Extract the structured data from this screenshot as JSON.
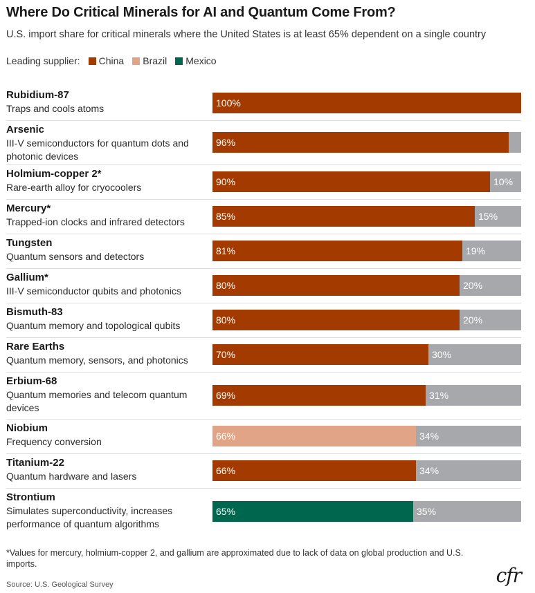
{
  "header": {
    "title": "Where Do Critical Minerals for AI and Quantum Come From?",
    "subtitle": "U.S. import share for critical minerals where the United States is at least 65% dependent on a single country"
  },
  "legend": {
    "title": "Leading supplier:",
    "items": [
      {
        "label": "China",
        "color": "#a33b00"
      },
      {
        "label": "Brazil",
        "color": "#e2a486"
      },
      {
        "label": "Mexico",
        "color": "#00674f"
      }
    ]
  },
  "colors": {
    "China": "#a33b00",
    "Brazil": "#e2a486",
    "Mexico": "#00674f",
    "other": "#a6a8ab"
  },
  "chart_data": {
    "type": "bar",
    "orientation": "horizontal",
    "stacked": true,
    "title": "Where Do Critical Minerals for AI and Quantum Come From?",
    "xlim": [
      0,
      100
    ],
    "categories": [
      "Rubidium-87",
      "Arsenic",
      "Holmium-copper 2*",
      "Mercury*",
      "Tungsten",
      "Gallium*",
      "Bismuth-83",
      "Rare Earths",
      "Erbium-68",
      "Niobium",
      "Titanium-22",
      "Strontium"
    ],
    "rows": [
      {
        "name": "Rubidium-87",
        "desc": "Traps and cools atoms",
        "supplier": "China",
        "value": 100,
        "value_label": "100%",
        "rest": 0,
        "rest_label": ""
      },
      {
        "name": "Arsenic",
        "desc": "III-V semiconductors for quantum dots and photonic devices",
        "supplier": "China",
        "value": 96,
        "value_label": "96%",
        "rest": 4,
        "rest_label": ""
      },
      {
        "name": "Holmium-copper 2*",
        "desc": "Rare-earth alloy for cryocoolers",
        "supplier": "China",
        "value": 90,
        "value_label": "90%",
        "rest": 10,
        "rest_label": "10%"
      },
      {
        "name": "Mercury*",
        "desc": "Trapped-ion clocks and infrared detectors",
        "supplier": "China",
        "value": 85,
        "value_label": "85%",
        "rest": 15,
        "rest_label": "15%"
      },
      {
        "name": "Tungsten",
        "desc": "Quantum sensors and detectors",
        "supplier": "China",
        "value": 81,
        "value_label": "81%",
        "rest": 19,
        "rest_label": "19%"
      },
      {
        "name": "Gallium*",
        "desc": "III-V semiconductor qubits and photonics",
        "supplier": "China",
        "value": 80,
        "value_label": "80%",
        "rest": 20,
        "rest_label": "20%"
      },
      {
        "name": "Bismuth-83",
        "desc": "Quantum memory and topological qubits",
        "supplier": "China",
        "value": 80,
        "value_label": "80%",
        "rest": 20,
        "rest_label": "20%"
      },
      {
        "name": "Rare Earths",
        "desc": "Quantum memory, sensors, and photonics",
        "supplier": "China",
        "value": 70,
        "value_label": "70%",
        "rest": 30,
        "rest_label": "30%"
      },
      {
        "name": "Erbium-68",
        "desc": "Quantum memories and telecom quantum devices",
        "supplier": "China",
        "value": 69,
        "value_label": "69%",
        "rest": 31,
        "rest_label": "31%"
      },
      {
        "name": "Niobium",
        "desc": "Frequency conversion",
        "supplier": "Brazil",
        "value": 66,
        "value_label": "66%",
        "rest": 34,
        "rest_label": "34%"
      },
      {
        "name": "Titanium-22",
        "desc": "Quantum hardware and lasers",
        "supplier": "China",
        "value": 66,
        "value_label": "66%",
        "rest": 34,
        "rest_label": "34%"
      },
      {
        "name": "Strontium",
        "desc": "Simulates superconductivity,  increases performance of quantum algorithms",
        "supplier": "Mexico",
        "value": 65,
        "value_label": "65%",
        "rest": 35,
        "rest_label": "35%"
      }
    ]
  },
  "footer": {
    "footnote": "*Values for mercury, holmium-copper 2, and gallium are approximated due to lack of data on global production and U.S. imports.",
    "source": "Source: U.S. Geological Survey",
    "logo_text": "cfr"
  }
}
